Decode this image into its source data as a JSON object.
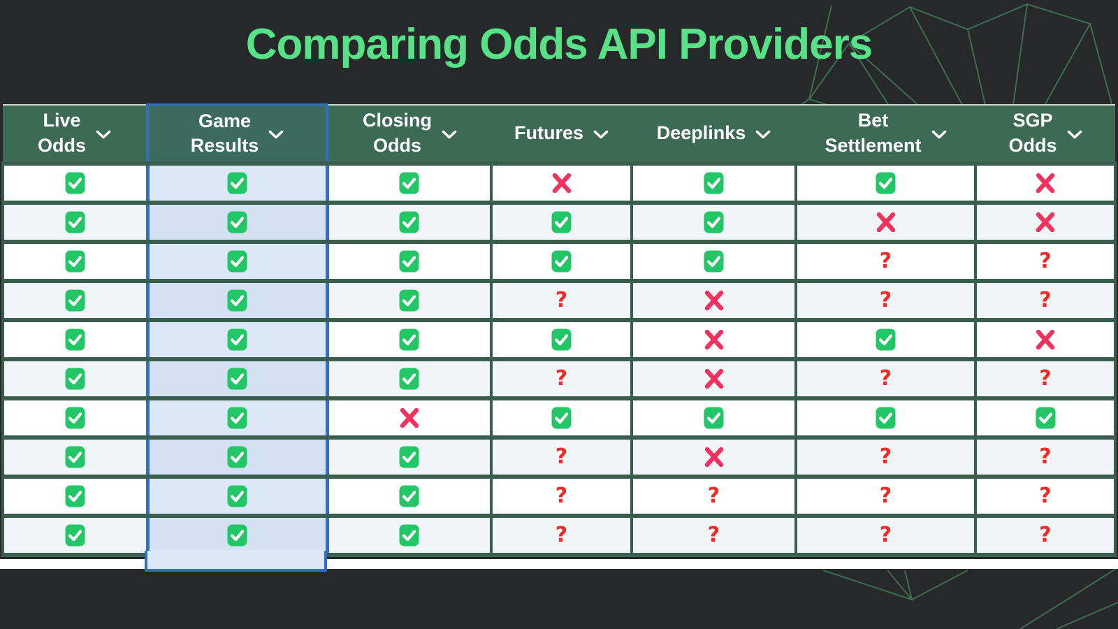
{
  "page": {
    "title": "Comparing Odds API Providers",
    "background_color": "#26282a",
    "title_color": "#58e287"
  },
  "table": {
    "columns": [
      {
        "label": "Live\nOdds",
        "selected": false
      },
      {
        "label": "Game\nResults",
        "selected": true
      },
      {
        "label": "Closing\nOdds",
        "selected": false
      },
      {
        "label": "Futures",
        "selected": false
      },
      {
        "label": "Deeplinks",
        "selected": false
      },
      {
        "label": "Bet\nSettlement",
        "selected": false
      },
      {
        "label": "SGP\nOdds",
        "selected": false
      }
    ],
    "header": {
      "chevron_icon": "chevron-down"
    },
    "rows": [
      [
        "check",
        "check",
        "check",
        "cross",
        "check",
        "check",
        "cross"
      ],
      [
        "check",
        "check",
        "check",
        "check",
        "check",
        "cross",
        "cross"
      ],
      [
        "check",
        "check",
        "check",
        "check",
        "check",
        "question",
        "question"
      ],
      [
        "check",
        "check",
        "check",
        "question",
        "cross",
        "question",
        "question"
      ],
      [
        "check",
        "check",
        "check",
        "check",
        "cross",
        "check",
        "cross"
      ],
      [
        "check",
        "check",
        "check",
        "question",
        "cross",
        "question",
        "question"
      ],
      [
        "check",
        "check",
        "cross",
        "check",
        "check",
        "check",
        "check"
      ],
      [
        "check",
        "check",
        "check",
        "question",
        "cross",
        "question",
        "question"
      ],
      [
        "check",
        "check",
        "check",
        "question",
        "question",
        "question",
        "question"
      ],
      [
        "check",
        "check",
        "check",
        "question",
        "question",
        "question",
        "question"
      ]
    ],
    "glyphs": {
      "question": "?"
    },
    "colors": {
      "header_green": "#3d6a54",
      "grid_green": "#3a5e4d",
      "check_green": "#23c667",
      "cross_pink": "#f2315e",
      "question_red": "#ee2b26",
      "row_alt_bg": "#f2f5f7",
      "highlight_fill": "#dce8f8",
      "highlight_border": "#2f6fc0"
    }
  }
}
